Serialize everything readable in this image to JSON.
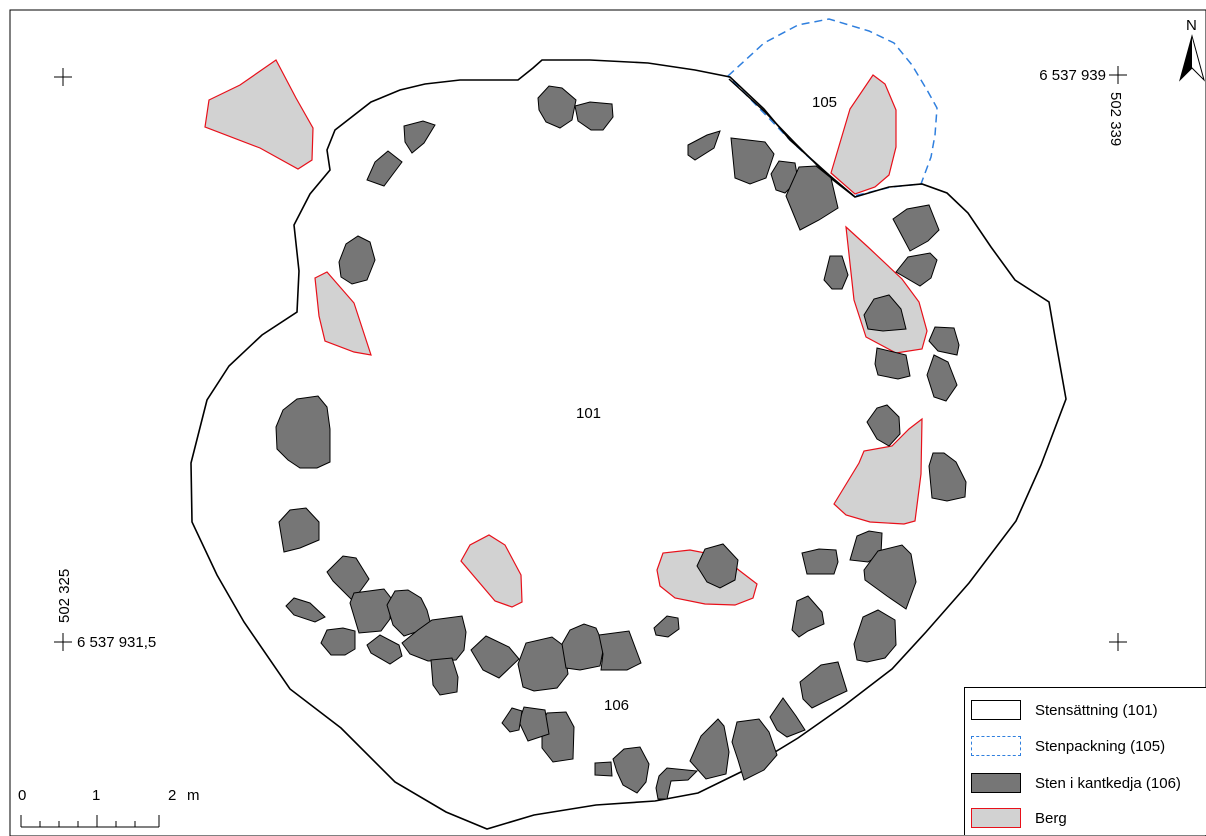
{
  "map": {
    "north_label": "N",
    "coordinates": {
      "top_right_north": "6 537 939",
      "top_right_east": "502 339",
      "bottom_left_north": "6 537 931,5",
      "bottom_left_east": "502 325"
    },
    "features": {
      "f101": "101",
      "f105": "105",
      "f106": "106"
    },
    "scalebar": {
      "t0": "0",
      "t1": "1",
      "t2": "2",
      "unit": "m"
    }
  },
  "legend": {
    "items": [
      {
        "label": "Stensättning (101)",
        "style": "solid-black-outline"
      },
      {
        "label": "Stenpackning (105)",
        "style": "dashed-blue-outline"
      },
      {
        "label": "Sten i kantkedja (106)",
        "style": "dark-gray-fill"
      },
      {
        "label": "Berg",
        "style": "light-gray-fill-red-outline"
      }
    ]
  },
  "colors": {
    "stone_fill": "#767676",
    "rock_fill": "#d2d2d2",
    "rock_stroke": "#e8101a",
    "packing_stroke": "#2f7fde",
    "outline": "#000000"
  }
}
